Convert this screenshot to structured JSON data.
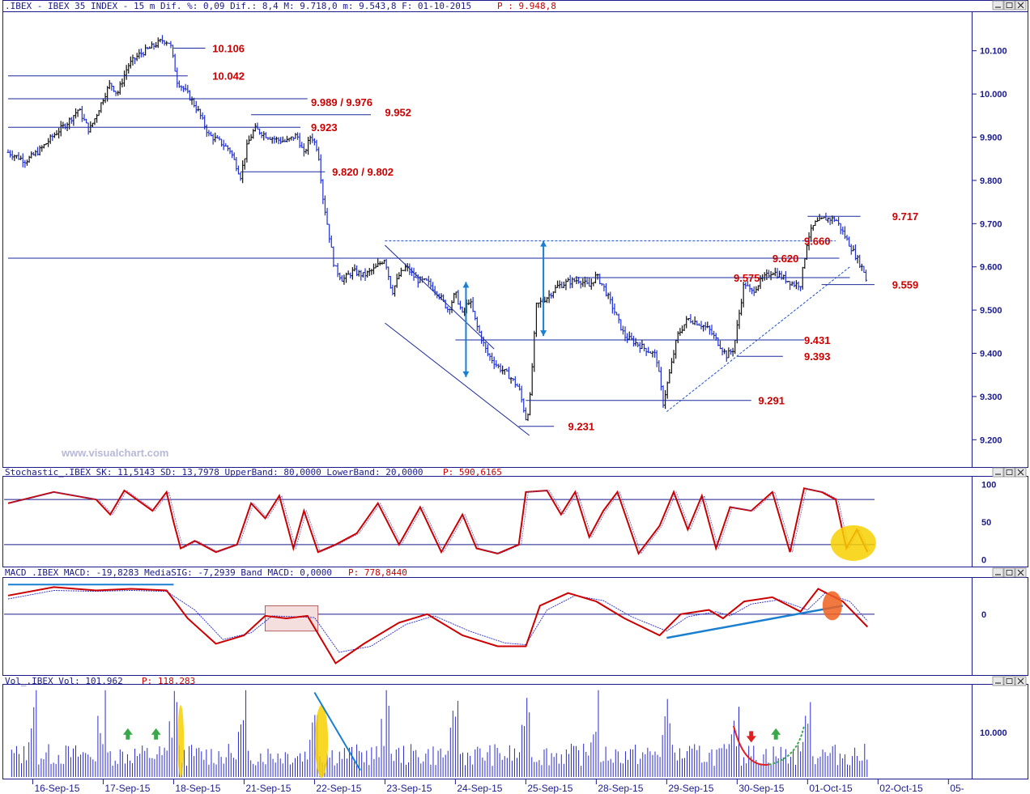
{
  "colors": {
    "axis": "#1a1a8c",
    "panel_line": "#1a1a8c",
    "level_text": "#cc0000",
    "candle_blue": "#1f2fd6",
    "candle_black": "#111111",
    "stoch_line": "#cc0000",
    "macd_line": "#cc0000",
    "signal_line": "#2a2ad0",
    "trend": "#1a7fd0",
    "highlight_yellow": "#f7d000",
    "highlight_orange": "#f06020",
    "volume": "#2a2ad0"
  },
  "windows": {
    "price": {
      "header": ".IBEX - IBEX 35 INDEX -  15 m Dif. %: 0,09 Dif.: 8,4 M: 9.718,0 m: 9.543,8 F: 01-10-2015",
      "header_extra": "P : 9.948,8"
    },
    "stochastic": {
      "header": "Stochastic_.IBEX SK: 11,5143 SD: 13,7978 UpperBand: 80,0000 LowerBand: 20,0000",
      "header_extra": "P: 590,6165"
    },
    "macd": {
      "header": "MACD_.IBEX MACD: -19,8283 MediaSIG: -7,2939 Band_MACD: 0,0000",
      "header_extra": "P: 778,8440"
    },
    "volume": {
      "header": "Vol_.IBEX Vol: 101.962",
      "header_extra": "P: 118.283"
    }
  },
  "watermark": "www.visualchart.com",
  "chart_data": [
    {
      "type": "line",
      "title": "IBEX 35 INDEX - 15 m",
      "y_ticks": [
        "10.100",
        "10.000",
        "9.900",
        "9.800",
        "9.700",
        "9.600",
        "9.500",
        "9.400",
        "9.300",
        "9.200"
      ],
      "y_tick_values": [
        10100,
        10000,
        9900,
        9800,
        9700,
        9600,
        9500,
        9400,
        9300,
        9200
      ],
      "ylim": [
        9150,
        10180
      ],
      "x_ticks": [
        "16-Sep-15",
        "17-Sep-15",
        "18-Sep-15",
        "21-Sep-15",
        "22-Sep-15",
        "23-Sep-15",
        "24-Sep-15",
        "25-Sep-15",
        "28-Sep-15",
        "29-Sep-15",
        "30-Sep-15",
        "01-Oct-15",
        "02-Oct-15",
        "05-"
      ],
      "x_tick_positions": [
        0,
        1,
        2,
        3,
        4,
        5,
        6,
        7,
        8,
        9,
        10,
        11,
        12,
        13
      ],
      "xlim": [
        -0.35,
        13.1
      ],
      "price_path": [
        [
          -0.35,
          9865
        ],
        [
          -0.1,
          9845
        ],
        [
          0.1,
          9870
        ],
        [
          0.3,
          9905
        ],
        [
          0.5,
          9935
        ],
        [
          0.65,
          9965
        ],
        [
          0.8,
          9915
        ],
        [
          0.9,
          9950
        ],
        [
          1.0,
          9990
        ],
        [
          1.1,
          10025
        ],
        [
          1.2,
          10000
        ],
        [
          1.35,
          10065
        ],
        [
          1.5,
          10090
        ],
        [
          1.7,
          10110
        ],
        [
          1.85,
          10125
        ],
        [
          1.95,
          10118
        ],
        [
          2.05,
          10030
        ],
        [
          2.2,
          10000
        ],
        [
          2.35,
          9960
        ],
        [
          2.5,
          9905
        ],
        [
          2.65,
          9890
        ],
        [
          2.8,
          9870
        ],
        [
          2.95,
          9810
        ],
        [
          3.05,
          9885
        ],
        [
          3.15,
          9920
        ],
        [
          3.3,
          9905
        ],
        [
          3.45,
          9895
        ],
        [
          3.6,
          9890
        ],
        [
          3.75,
          9905
        ],
        [
          3.85,
          9860
        ],
        [
          3.95,
          9905
        ],
        [
          4.05,
          9870
        ],
        [
          4.12,
          9760
        ],
        [
          4.2,
          9680
        ],
        [
          4.28,
          9600
        ],
        [
          4.4,
          9570
        ],
        [
          4.55,
          9590
        ],
        [
          4.7,
          9580
        ],
        [
          4.85,
          9595
        ],
        [
          5.0,
          9620
        ],
        [
          5.1,
          9540
        ],
        [
          5.2,
          9580
        ],
        [
          5.3,
          9600
        ],
        [
          5.45,
          9570
        ],
        [
          5.6,
          9565
        ],
        [
          5.75,
          9540
        ],
        [
          5.9,
          9500
        ],
        [
          6.0,
          9540
        ],
        [
          6.1,
          9490
        ],
        [
          6.2,
          9525
        ],
        [
          6.3,
          9465
        ],
        [
          6.45,
          9400
        ],
        [
          6.6,
          9370
        ],
        [
          6.75,
          9350
        ],
        [
          6.9,
          9320
        ],
        [
          7.0,
          9250
        ],
        [
          7.05,
          9275
        ],
        [
          7.15,
          9510
        ],
        [
          7.3,
          9530
        ],
        [
          7.45,
          9555
        ],
        [
          7.6,
          9565
        ],
        [
          7.75,
          9570
        ],
        [
          7.9,
          9555
        ],
        [
          8.0,
          9580
        ],
        [
          8.1,
          9555
        ],
        [
          8.25,
          9500
        ],
        [
          8.4,
          9440
        ],
        [
          8.55,
          9425
        ],
        [
          8.7,
          9410
        ],
        [
          8.85,
          9395
        ],
        [
          8.95,
          9285
        ],
        [
          9.05,
          9360
        ],
        [
          9.15,
          9440
        ],
        [
          9.3,
          9480
        ],
        [
          9.45,
          9470
        ],
        [
          9.6,
          9455
        ],
        [
          9.75,
          9420
        ],
        [
          9.85,
          9395
        ],
        [
          9.95,
          9410
        ],
        [
          10.1,
          9565
        ],
        [
          10.2,
          9540
        ],
        [
          10.35,
          9570
        ],
        [
          10.5,
          9590
        ],
        [
          10.65,
          9575
        ],
        [
          10.8,
          9560
        ],
        [
          10.9,
          9560
        ],
        [
          11.0,
          9665
        ],
        [
          11.1,
          9700
        ],
        [
          11.25,
          9712
        ],
        [
          11.4,
          9710
        ],
        [
          11.5,
          9680
        ],
        [
          11.6,
          9650
        ],
        [
          11.7,
          9620
        ],
        [
          11.8,
          9590
        ],
        [
          11.85,
          9558
        ]
      ],
      "annotations": [
        "10.106",
        "10.042",
        "9.989 / 9.976",
        "9.952",
        "9.923",
        "9.820 / 9.802",
        "9.717",
        "9.660",
        "9.620",
        "9.575",
        "9.559",
        "9.431",
        "9.393",
        "9.291",
        "9.231"
      ],
      "annotation_values": [
        10106,
        10042,
        9989,
        9952,
        9923,
        9820,
        9717,
        9660,
        9620,
        9575,
        9559,
        9431,
        9393,
        9291,
        9231
      ]
    },
    {
      "type": "line",
      "title": "Stochastic_.IBEX",
      "y_ticks": [
        "100",
        "50",
        "0"
      ],
      "y_tick_values": [
        100,
        50,
        0
      ],
      "bands": [
        80,
        20
      ],
      "ylim": [
        -5,
        105
      ],
      "sk": [
        [
          -0.35,
          75
        ],
        [
          0.3,
          90
        ],
        [
          0.9,
          80
        ],
        [
          1.1,
          60
        ],
        [
          1.3,
          92
        ],
        [
          1.7,
          65
        ],
        [
          1.9,
          90
        ],
        [
          2.0,
          50
        ],
        [
          2.1,
          15
        ],
        [
          2.3,
          25
        ],
        [
          2.6,
          10
        ],
        [
          2.9,
          20
        ],
        [
          3.1,
          75
        ],
        [
          3.3,
          55
        ],
        [
          3.5,
          85
        ],
        [
          3.7,
          15
        ],
        [
          3.85,
          65
        ],
        [
          4.05,
          10
        ],
        [
          4.3,
          20
        ],
        [
          4.6,
          35
        ],
        [
          4.9,
          75
        ],
        [
          5.2,
          20
        ],
        [
          5.5,
          70
        ],
        [
          5.8,
          10
        ],
        [
          6.1,
          60
        ],
        [
          6.3,
          15
        ],
        [
          6.6,
          8
        ],
        [
          6.9,
          20
        ],
        [
          7.0,
          90
        ],
        [
          7.3,
          92
        ],
        [
          7.5,
          60
        ],
        [
          7.7,
          90
        ],
        [
          7.9,
          30
        ],
        [
          8.1,
          65
        ],
        [
          8.3,
          90
        ],
        [
          8.6,
          8
        ],
        [
          8.9,
          45
        ],
        [
          9.1,
          90
        ],
        [
          9.3,
          40
        ],
        [
          9.5,
          85
        ],
        [
          9.7,
          15
        ],
        [
          9.9,
          70
        ],
        [
          10.2,
          65
        ],
        [
          10.5,
          90
        ],
        [
          10.75,
          10
        ],
        [
          10.95,
          95
        ],
        [
          11.2,
          90
        ],
        [
          11.4,
          80
        ],
        [
          11.55,
          15
        ],
        [
          11.7,
          40
        ],
        [
          11.85,
          10
        ]
      ]
    },
    {
      "type": "line",
      "title": "MACD_.IBEX",
      "y_ticks": [
        "0"
      ],
      "y_tick_values": [
        0
      ],
      "ylim": [
        -70,
        40
      ],
      "macd": [
        [
          -0.35,
          22
        ],
        [
          0.3,
          32
        ],
        [
          0.9,
          28
        ],
        [
          1.4,
          30
        ],
        [
          1.9,
          28
        ],
        [
          2.2,
          -5
        ],
        [
          2.6,
          -35
        ],
        [
          3.0,
          -25
        ],
        [
          3.3,
          -2
        ],
        [
          3.6,
          -5
        ],
        [
          3.9,
          -2
        ],
        [
          4.1,
          -30
        ],
        [
          4.3,
          -58
        ],
        [
          4.7,
          -35
        ],
        [
          5.2,
          -10
        ],
        [
          5.6,
          0
        ],
        [
          6.1,
          -25
        ],
        [
          6.6,
          -38
        ],
        [
          7.0,
          -38
        ],
        [
          7.2,
          10
        ],
        [
          7.6,
          25
        ],
        [
          8.0,
          15
        ],
        [
          8.4,
          -5
        ],
        [
          8.9,
          -25
        ],
        [
          9.2,
          0
        ],
        [
          9.6,
          5
        ],
        [
          9.8,
          -5
        ],
        [
          10.1,
          15
        ],
        [
          10.5,
          20
        ],
        [
          10.9,
          3
        ],
        [
          11.15,
          30
        ],
        [
          11.5,
          15
        ],
        [
          11.85,
          -15
        ]
      ],
      "signal": [
        [
          -0.35,
          18
        ],
        [
          0.3,
          28
        ],
        [
          0.9,
          27
        ],
        [
          1.4,
          28
        ],
        [
          1.9,
          27
        ],
        [
          2.3,
          5
        ],
        [
          2.7,
          -30
        ],
        [
          3.1,
          -22
        ],
        [
          3.4,
          -2
        ],
        [
          3.7,
          -3
        ],
        [
          4.0,
          -4
        ],
        [
          4.35,
          -45
        ],
        [
          4.8,
          -38
        ],
        [
          5.3,
          -12
        ],
        [
          5.7,
          -2
        ],
        [
          6.2,
          -20
        ],
        [
          6.7,
          -34
        ],
        [
          7.0,
          -36
        ],
        [
          7.3,
          5
        ],
        [
          7.7,
          22
        ],
        [
          8.1,
          16
        ],
        [
          8.5,
          -3
        ],
        [
          9.0,
          -20
        ],
        [
          9.3,
          -3
        ],
        [
          9.7,
          3
        ],
        [
          9.9,
          -2
        ],
        [
          10.2,
          12
        ],
        [
          10.6,
          17
        ],
        [
          11.0,
          5
        ],
        [
          11.25,
          25
        ],
        [
          11.6,
          15
        ],
        [
          11.85,
          -8
        ]
      ]
    },
    {
      "type": "bar",
      "title": "Vol_.IBEX",
      "y_ticks": [
        "10.000"
      ],
      "y_tick_values": [
        10000
      ],
      "ylim": [
        0,
        20000
      ]
    }
  ]
}
